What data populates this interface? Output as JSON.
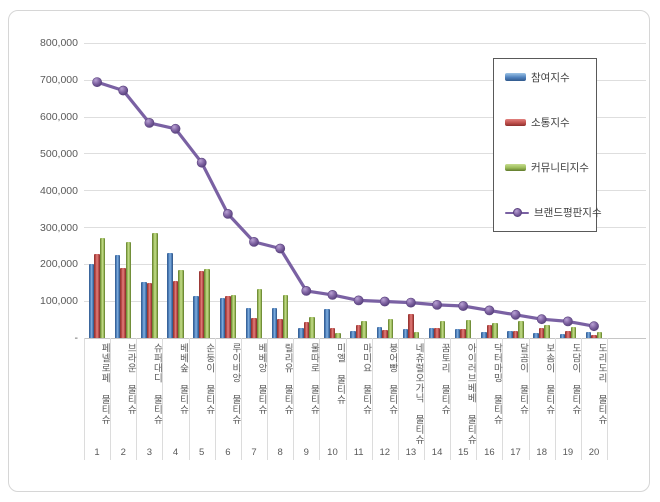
{
  "frame": {
    "background": "#ffffff",
    "border_color": "#d6d6d6"
  },
  "legend": {
    "items": [
      {
        "label": "참여지수",
        "color": "#4f81bd",
        "marker": "bar-swatch-blue"
      },
      {
        "label": "소통지수",
        "color": "#c0504d",
        "marker": "bar-swatch-red"
      },
      {
        "label": "커뮤니티지수",
        "color": "#9bbb59",
        "marker": "bar-swatch-green"
      },
      {
        "label": "브랜드평판지수",
        "color": "#8064a2",
        "marker": "line-marker-purple"
      }
    ]
  },
  "chart_data": {
    "type": "bar+line",
    "title": "",
    "xlabel": "",
    "ylabel": "",
    "ylim": [
      0,
      800000
    ],
    "ytick_interval": 100000,
    "ytick_labels": [
      "800,000",
      "700,000",
      "600,000",
      "500,000",
      "400,000",
      "300,000",
      "200,000",
      "100,000",
      "-"
    ],
    "ytick_values": [
      800000,
      700000,
      600000,
      500000,
      400000,
      300000,
      200000,
      100000,
      0
    ],
    "grid": true,
    "legend_position": "inside-top-right",
    "categories": [
      "페넬로페 물티슈",
      "브라운 물티슈",
      "슈퍼대디 물티슈",
      "베베숲 물티슈",
      "순둥이 물티슈",
      "루이비앙 물티슈",
      "베베앙 물티슈",
      "릴리유 물티슈",
      "물따로 물티슈",
      "미엘 물티슈",
      "마미요 물티슈",
      "붕어빵 물티슈",
      "네츄럴오가닉 물티슈",
      "꿈토리 물티슈",
      "아이러브베베 물티슈",
      "닥터마밍 물티슈",
      "달곰이 물티슈",
      "보솜이 물티슈",
      "도담이 물티슈",
      "도리도리 물티슈"
    ],
    "ranks": [
      "1",
      "2",
      "3",
      "4",
      "5",
      "6",
      "7",
      "8",
      "9",
      "10",
      "11",
      "12",
      "13",
      "14",
      "15",
      "16",
      "17",
      "18",
      "19",
      "20"
    ],
    "series": [
      {
        "name": "참여지수",
        "type": "bar",
        "color": "#4f81bd",
        "values": [
          200000,
          225000,
          153000,
          230000,
          115000,
          108000,
          81000,
          81000,
          26000,
          78000,
          20000,
          31000,
          24000,
          26000,
          25000,
          15000,
          20000,
          13000,
          11000,
          17000
        ]
      },
      {
        "name": "소통지수",
        "type": "bar",
        "color": "#c0504d",
        "values": [
          227000,
          191000,
          148000,
          155000,
          182000,
          115000,
          55000,
          52000,
          44000,
          26000,
          36000,
          22000,
          66000,
          26000,
          25000,
          36000,
          20000,
          26000,
          19000,
          8000
        ]
      },
      {
        "name": "커뮤니티지수",
        "type": "bar",
        "color": "#9bbb59",
        "values": [
          271000,
          260000,
          284000,
          185000,
          187000,
          117000,
          132000,
          117000,
          58000,
          14000,
          47000,
          51000,
          17000,
          47000,
          48000,
          42000,
          45000,
          36000,
          31000,
          15000
        ]
      },
      {
        "name": "브랜드평판지수",
        "type": "line",
        "color": "#8064a2",
        "values": [
          695000,
          672000,
          584000,
          568000,
          476000,
          337000,
          261000,
          243000,
          128000,
          117000,
          102000,
          99000,
          96000,
          90000,
          87000,
          75000,
          63000,
          51000,
          45000,
          32000
        ]
      }
    ]
  }
}
